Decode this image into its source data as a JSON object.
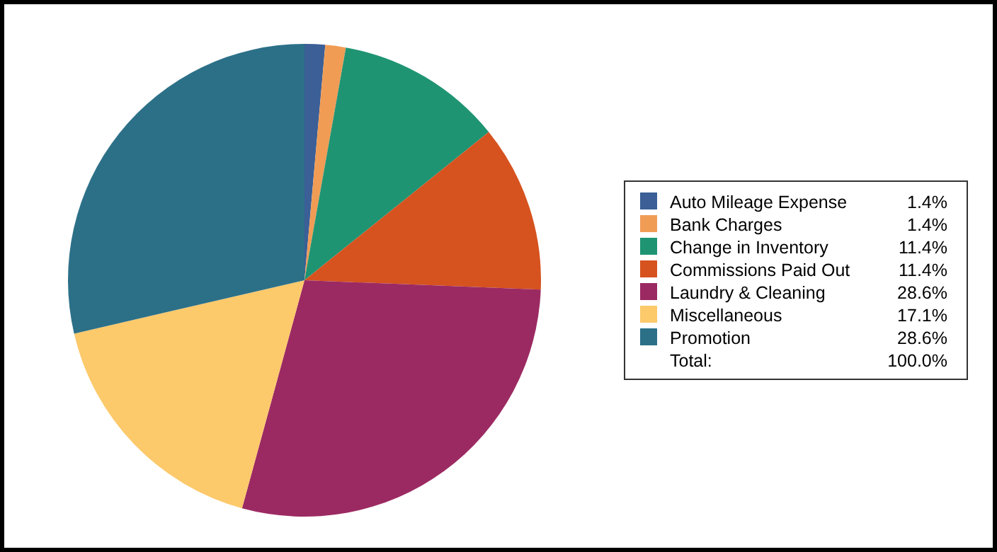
{
  "chart_data": {
    "type": "pie",
    "categories": [
      "Auto Mileage Expense",
      "Bank Charges",
      "Change in Inventory",
      "Commissions Paid Out",
      "Laundry & Cleaning",
      "Miscellaneous",
      "Promotion"
    ],
    "values": [
      1.4,
      1.4,
      11.4,
      11.4,
      28.6,
      17.1,
      28.6
    ],
    "value_labels": [
      "1.4%",
      "1.4%",
      "11.4%",
      "11.4%",
      "28.6%",
      "17.1%",
      "28.6%"
    ],
    "colors": [
      "#3b5f96",
      "#f09c55",
      "#1f9472",
      "#d6521f",
      "#9c2a62",
      "#fcc96b",
      "#2c7088"
    ],
    "legend": "right",
    "annotations": [
      "Total:",
      "100.0%"
    ]
  }
}
